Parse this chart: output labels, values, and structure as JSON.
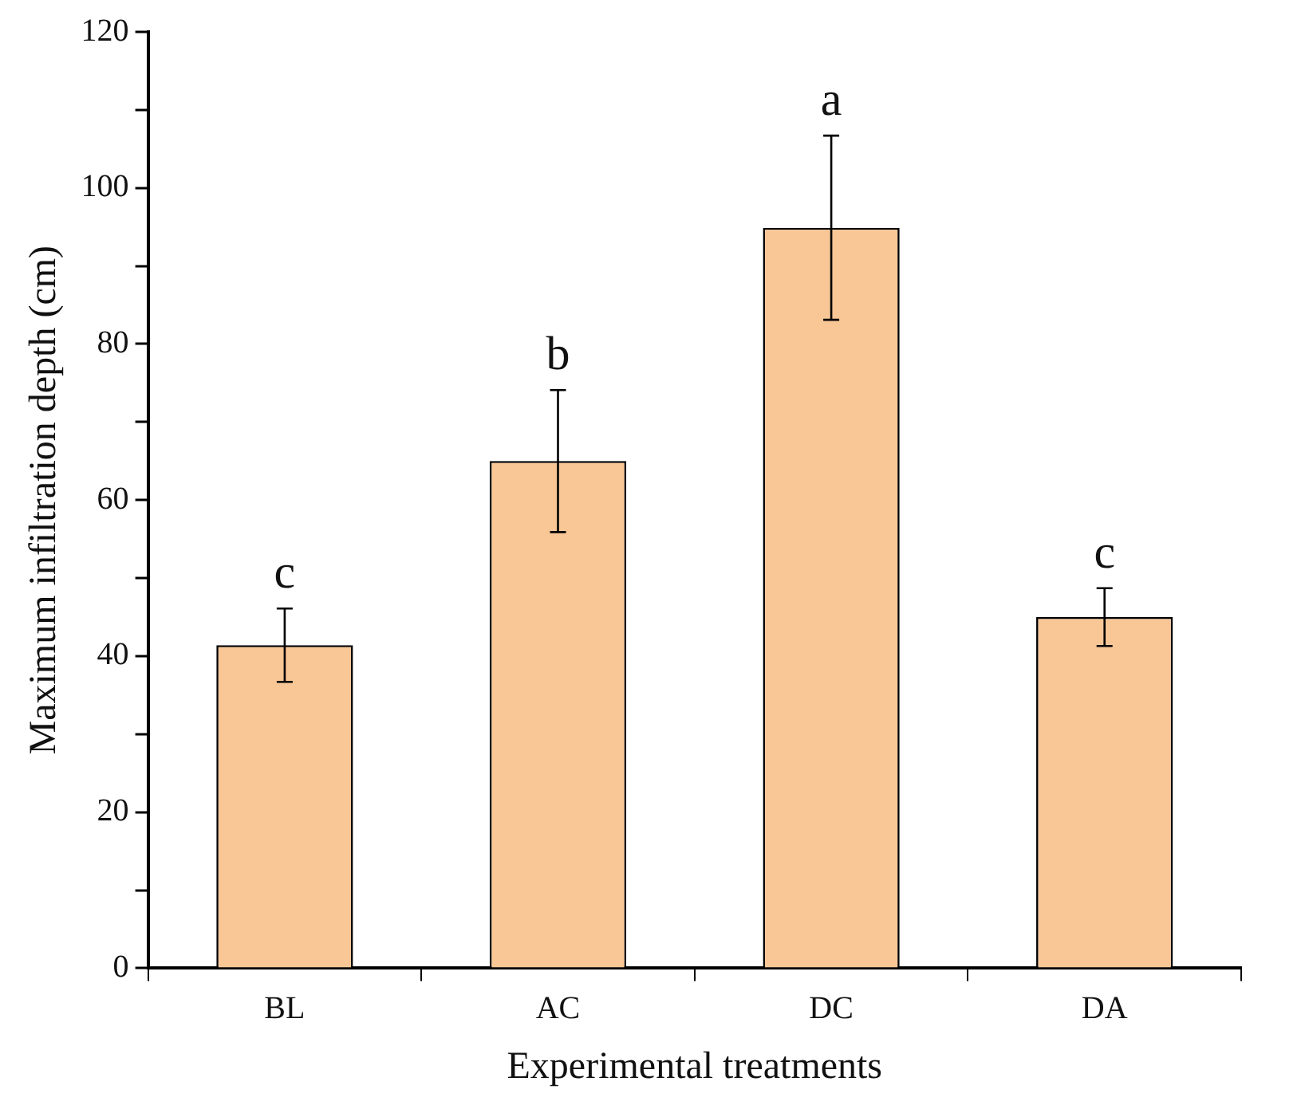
{
  "chart_data": {
    "type": "bar",
    "xlabel": "Experimental treatments",
    "ylabel": "Maximum infiltration depth (cm)",
    "categories": [
      "BL",
      "AC",
      "DC",
      "DA"
    ],
    "values": [
      41.4,
      65.0,
      94.9,
      45.0
    ],
    "errors": [
      4.7,
      9.1,
      11.8,
      3.7
    ],
    "color": "#f9c696",
    "ylim": [
      0,
      120
    ],
    "yticks": [
      0,
      {
        "value": 10,
        "label": null
      },
      20,
      {
        "value": 30,
        "label": null
      },
      40,
      {
        "value": 50,
        "label": null
      },
      60,
      {
        "value": 70,
        "label": null
      },
      80,
      {
        "value": 90,
        "label": null
      },
      100,
      {
        "value": 110,
        "label": null
      },
      120
    ],
    "annotations": [
      {
        "text": "c",
        "x": "BL",
        "y": 46.1
      },
      {
        "text": "b",
        "x": "AC",
        "y": 74.1
      },
      {
        "text": "a",
        "x": "DC",
        "y": 106.7
      },
      {
        "text": "c",
        "x": "DA",
        "y": 48.7
      }
    ],
    "grid": false,
    "legend": false
  }
}
